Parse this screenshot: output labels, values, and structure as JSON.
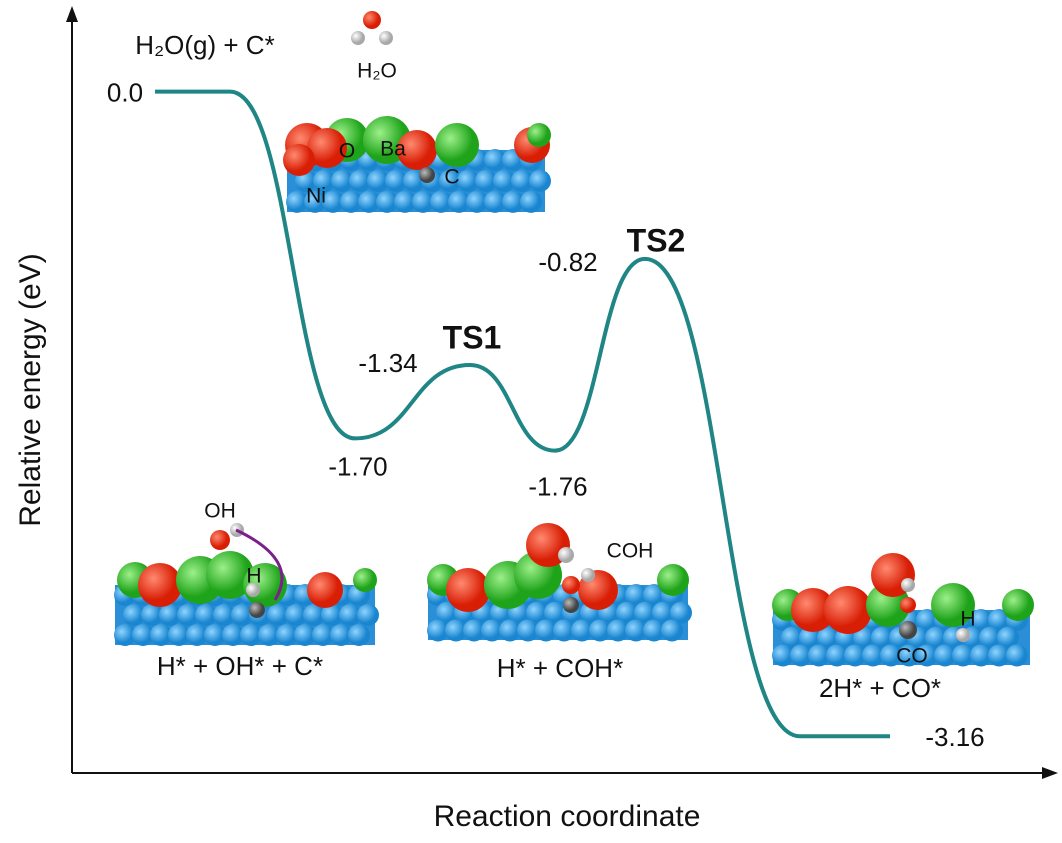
{
  "chart_data": {
    "type": "line",
    "y_label": "Relative energy (eV)",
    "x_label": "Reaction coordinate",
    "categories": [
      null,
      null,
      null,
      null,
      null,
      null
    ],
    "values": [
      0,
      -1.7,
      -1.34,
      -1.76,
      -0.82,
      -3.16
    ],
    "value_labels": [
      "0.0",
      "-1.70",
      "-1.34",
      "-1.76",
      "-0.82",
      "-3.16"
    ],
    "color": "#1f8585",
    "ylim": [
      -3.34,
      0.4
    ],
    "transition_states": [
      "TS1",
      "TS2"
    ],
    "states": [
      "H₂O(g) + C*",
      "H* + OH* + C*",
      "H* + COH*",
      "2H* + CO*"
    ],
    "atom_labels": [
      "H₂O",
      "Ni",
      "O",
      "Ba",
      "C",
      "OH",
      "H",
      "COH",
      "CO",
      "H"
    ]
  }
}
